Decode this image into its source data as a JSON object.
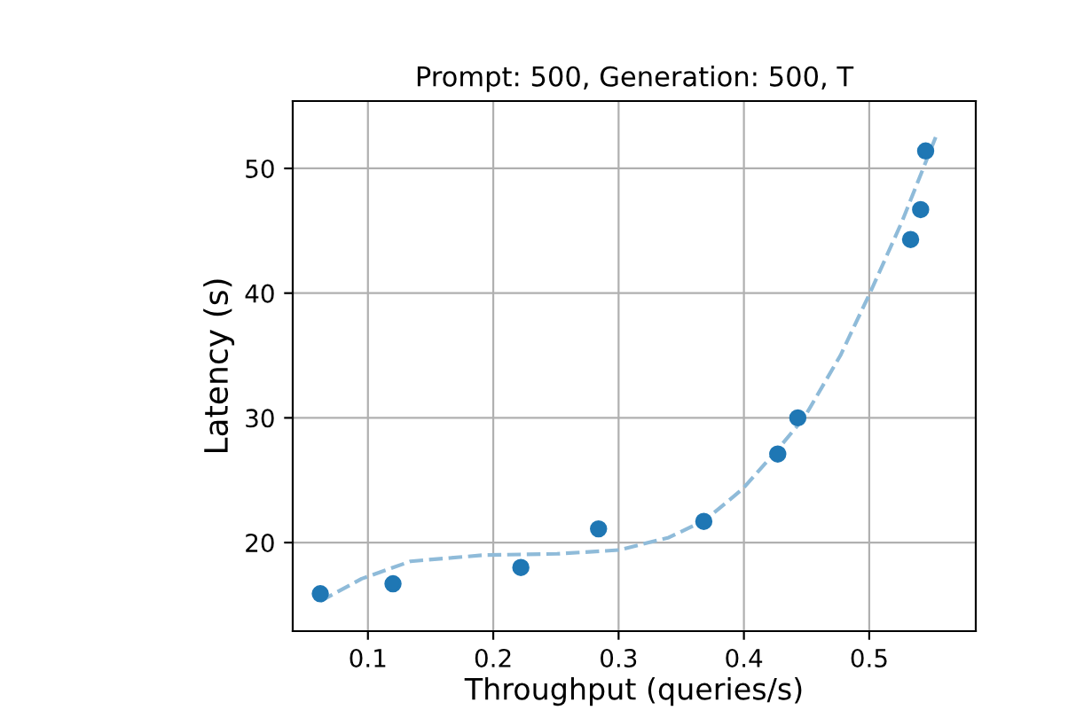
{
  "chart_data": {
    "type": "scatter",
    "title": "Prompt: 500, Generation: 500, T",
    "xlabel": "Throughput (queries/s)",
    "ylabel": "Latency (s)",
    "x": [
      0.062,
      0.12,
      0.222,
      0.284,
      0.368,
      0.427,
      0.443,
      0.533,
      0.541,
      0.545
    ],
    "series": [
      {
        "color": "#1f77b4",
        "marker": "circle",
        "values": [
          15.9,
          16.7,
          18.0,
          21.1,
          21.7,
          27.1,
          30.0,
          44.3,
          46.7,
          51.4
        ]
      },
      {
        "type": "line",
        "color": "#8fbbd9",
        "line_style": "dashed",
        "marker": "none",
        "x": [
          0.062,
          0.095,
          0.134,
          0.193,
          0.251,
          0.3,
          0.34,
          0.369,
          0.399,
          0.428,
          0.448,
          0.477,
          0.501,
          0.526,
          0.553
        ],
        "values": [
          15.3,
          17.1,
          18.5,
          19.0,
          19.1,
          19.4,
          20.4,
          21.8,
          24.3,
          27.6,
          30.0,
          35.0,
          40.1,
          45.7,
          52.5
        ]
      }
    ],
    "xlim": [
      0.04,
      0.585
    ],
    "ylim": [
      12.9,
      55.4
    ],
    "xticks": [
      {
        "value": 0.1,
        "label": "0.1"
      },
      {
        "value": 0.2,
        "label": "0.2"
      },
      {
        "value": 0.3,
        "label": "0.3"
      },
      {
        "value": 0.4,
        "label": "0.4"
      },
      {
        "value": 0.5,
        "label": "0.5"
      }
    ],
    "yticks": [
      20,
      30,
      40,
      50
    ],
    "grid": true
  }
}
